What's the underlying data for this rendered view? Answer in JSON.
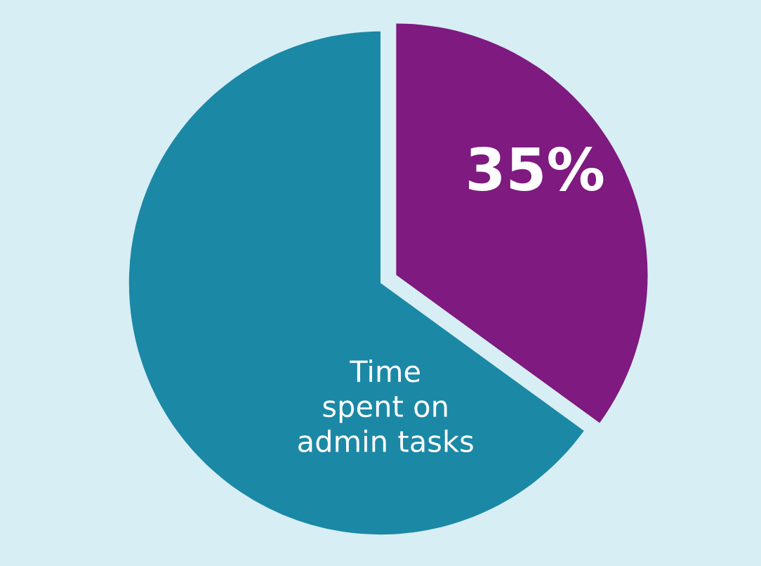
{
  "chart_data": {
    "type": "pie",
    "categories": [
      null,
      null
    ],
    "values": [
      35,
      65
    ],
    "colors": [
      "#7e1a80",
      "#1b88a6"
    ],
    "value_labels": [
      "35%",
      null
    ],
    "annotations": [
      "Time\nspent on\nadmin tasks"
    ],
    "legend": false
  }
}
